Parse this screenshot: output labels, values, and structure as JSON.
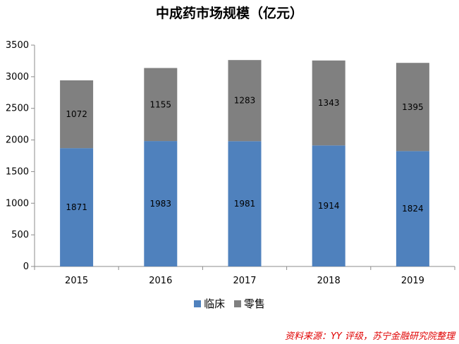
{
  "chart_data": {
    "type": "bar",
    "stacked": true,
    "title": "中成药市场规模（亿元）",
    "categories": [
      "2015",
      "2016",
      "2017",
      "2018",
      "2019"
    ],
    "series": [
      {
        "name": "临床",
        "values": [
          1871,
          1983,
          1981,
          1914,
          1824
        ],
        "color": "#4f81bd"
      },
      {
        "name": "零售",
        "values": [
          1072,
          1155,
          1283,
          1343,
          1395
        ],
        "color": "#808080"
      }
    ],
    "ylim": [
      0,
      3500
    ],
    "yticks": [
      0,
      500,
      1000,
      1500,
      2000,
      2500,
      3000,
      3500
    ],
    "legend_position": "bottom",
    "grid": false
  },
  "source": "资料来源：YY 评级，苏宁金融研究院整理"
}
